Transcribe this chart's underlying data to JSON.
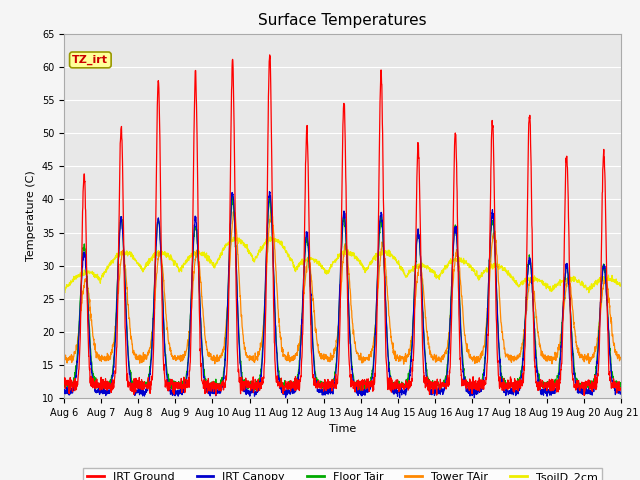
{
  "title": "Surface Temperatures",
  "xlabel": "Time",
  "ylabel": "Temperature (C)",
  "ylim": [
    10,
    65
  ],
  "yticks": [
    10,
    15,
    20,
    25,
    30,
    35,
    40,
    45,
    50,
    55,
    60,
    65
  ],
  "x_tick_labels": [
    "Aug 6",
    "Aug 7",
    "Aug 8",
    "Aug 9",
    "Aug 10",
    "Aug 11",
    "Aug 12",
    "Aug 13",
    "Aug 14",
    "Aug 15",
    "Aug 16",
    "Aug 17",
    "Aug 18",
    "Aug 19",
    "Aug 20",
    "Aug 21"
  ],
  "annotation_text": "TZ_irt",
  "annotation_color": "#cc0000",
  "annotation_bg": "#ffff99",
  "annotation_border": "#999900",
  "series_colors": {
    "IRT Ground": "#ff0000",
    "IRT Canopy": "#0000cc",
    "Floor Tair": "#00aa00",
    "Tower TAir": "#ff8800",
    "TsoilD_2cm": "#eeee00"
  },
  "bg_color": "#e8e8e8",
  "grid_color": "#ffffff",
  "title_fontsize": 11,
  "axis_fontsize": 8,
  "tick_fontsize": 7,
  "legend_fontsize": 8,
  "irt_ground_peaks": [
    44,
    51,
    58,
    59,
    61,
    62,
    50,
    55,
    59,
    48,
    50,
    52,
    53,
    47,
    47
  ],
  "irt_ground_min": 12,
  "canopy_peaks": [
    32,
    37,
    37,
    37,
    41,
    41,
    35,
    38,
    38,
    35,
    36,
    38,
    31,
    30,
    30
  ],
  "canopy_min": 11,
  "floor_peaks": [
    33,
    37,
    37,
    36,
    40,
    40,
    34,
    37,
    37,
    35,
    36,
    37,
    31,
    30,
    30
  ],
  "floor_min": 12,
  "tower_peaks": [
    28,
    32,
    32,
    32,
    38,
    38,
    31,
    33,
    33,
    30,
    32,
    35,
    28,
    28,
    28
  ],
  "tower_min": 16,
  "tsoil_peaks": [
    29,
    32,
    32,
    32,
    34,
    34,
    31,
    32,
    32,
    30,
    31,
    30,
    28,
    28,
    28
  ],
  "tsoil_min": 22
}
